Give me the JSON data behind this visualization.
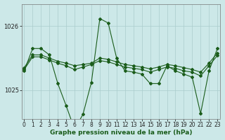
{
  "title": "Graphe pression niveau de la mer (hPa)",
  "bg_color": "#cce8e8",
  "line_color": "#1a5c1a",
  "grid_color": "#aacccc",
  "x_ticks": [
    0,
    1,
    2,
    3,
    4,
    5,
    6,
    7,
    8,
    9,
    10,
    11,
    12,
    13,
    14,
    15,
    16,
    17,
    18,
    19,
    20,
    21,
    22,
    23
  ],
  "y_ticks": [
    1025,
    1026
  ],
  "ylim": [
    1024.55,
    1026.35
  ],
  "xlim": [
    -0.3,
    23.3
  ],
  "line1_y": [
    1025.3,
    1025.65,
    1025.65,
    1025.55,
    1025.1,
    1024.75,
    1024.38,
    1024.62,
    1025.12,
    1026.12,
    1026.05,
    1025.5,
    1025.3,
    1025.28,
    1025.25,
    1025.1,
    1025.1,
    1025.38,
    1025.3,
    1025.25,
    1025.2,
    1024.63,
    1025.3,
    1025.65
  ],
  "line2_y": [
    1025.35,
    1025.55,
    1025.55,
    1025.5,
    1025.45,
    1025.42,
    1025.38,
    1025.4,
    1025.42,
    1025.5,
    1025.48,
    1025.44,
    1025.4,
    1025.38,
    1025.36,
    1025.33,
    1025.36,
    1025.4,
    1025.38,
    1025.35,
    1025.32,
    1025.28,
    1025.42,
    1025.58
  ],
  "line3_y": [
    1025.32,
    1025.52,
    1025.52,
    1025.47,
    1025.42,
    1025.38,
    1025.32,
    1025.36,
    1025.4,
    1025.46,
    1025.44,
    1025.4,
    1025.36,
    1025.34,
    1025.32,
    1025.28,
    1025.32,
    1025.36,
    1025.34,
    1025.3,
    1025.28,
    1025.22,
    1025.38,
    1025.54
  ],
  "tick_fontsize": 5.5,
  "xlabel_fontsize": 6.5
}
